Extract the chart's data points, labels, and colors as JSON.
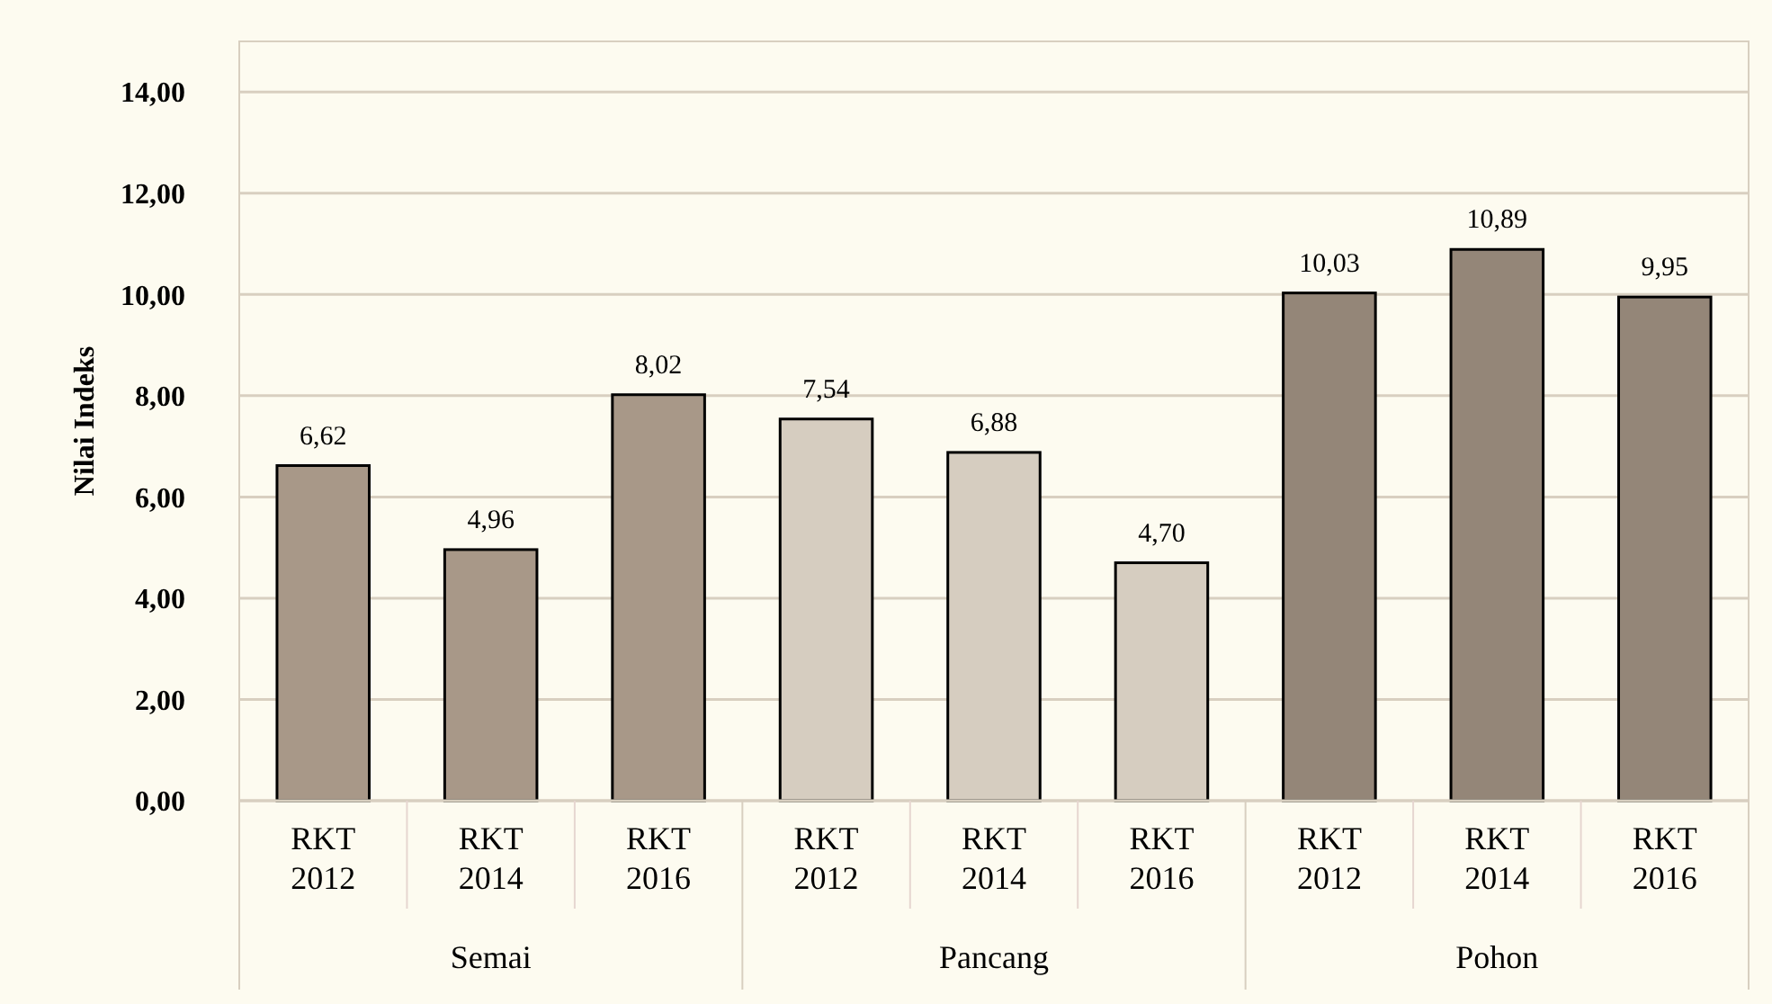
{
  "chart_data": {
    "type": "bar",
    "ylabel": "Nilai Indeks",
    "categories": [
      "RKT 2012",
      "RKT 2014",
      "RKT 2016",
      "RKT 2012",
      "RKT 2014",
      "RKT 2016",
      "RKT 2012",
      "RKT 2014",
      "RKT 2016"
    ],
    "values": [
      6.62,
      4.96,
      8.02,
      7.54,
      6.88,
      4.7,
      10.03,
      10.89,
      9.95
    ],
    "value_labels": [
      "6,62",
      "4,96",
      "8,02",
      "7,54",
      "6,88",
      "4,70",
      "10,03",
      "10,89",
      "9,95"
    ],
    "colors": [
      "#a89888",
      "#a89888",
      "#a89888",
      "#d6cdc0",
      "#d6cdc0",
      "#d6cdc0",
      "#948678",
      "#948678",
      "#948678"
    ],
    "annotations": [
      "Semai",
      "Pancang",
      "Pohon"
    ],
    "ylim": [
      0,
      15
    ],
    "yticks": [
      {
        "value": 0,
        "label": "0,00"
      },
      {
        "value": 2,
        "label": "2,00"
      },
      {
        "value": 4,
        "label": "4,00"
      },
      {
        "value": 6,
        "label": "6,00"
      },
      {
        "value": 8,
        "label": "8,00"
      },
      {
        "value": 10,
        "label": "10,00"
      },
      {
        "value": 12,
        "label": "12,00"
      },
      {
        "value": 14,
        "label": "14,00"
      }
    ],
    "grid": "y"
  }
}
